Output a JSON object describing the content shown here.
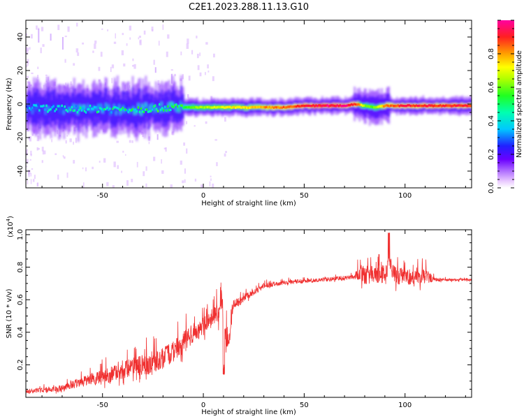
{
  "title": "C2E1.2023.288.11.13.G10",
  "chart_data": [
    {
      "type": "heatmap",
      "xlabel": "Height of straight line (km)",
      "ylabel": "Frequency (Hz)",
      "xlim": [
        -88,
        133
      ],
      "ylim": [
        -50,
        50
      ],
      "xticks": [
        -50,
        0,
        50,
        100
      ],
      "xtick_labels": [
        "-50",
        "0",
        "50",
        "100"
      ],
      "yticks": [
        -40,
        -20,
        0,
        20,
        40
      ],
      "ytick_labels": [
        "-40",
        "-20",
        "0",
        "20",
        "40"
      ],
      "colorbar": {
        "label": "Normalized spectral amplitude",
        "range": [
          0,
          1
        ],
        "ticks": [
          0.0,
          0.2,
          0.4,
          0.6,
          0.8
        ],
        "tick_labels": [
          "0.0",
          "0.2",
          "0.4",
          "0.6",
          "0.8"
        ]
      },
      "ridge": {
        "x": [
          -88,
          -70,
          -60,
          -50,
          -40,
          -30,
          -20,
          -10,
          0,
          20,
          40,
          50,
          60,
          70,
          75,
          80,
          85,
          90,
          100,
          110,
          120,
          133
        ],
        "frequency": [
          -2,
          -3,
          -3,
          -3,
          -3,
          -3,
          -2,
          -2,
          -2,
          -2,
          -2,
          -1,
          -1,
          -1,
          0,
          -1,
          -2,
          -1,
          -1,
          -1,
          -1,
          -1
        ],
        "amplitude": [
          0.35,
          0.4,
          0.45,
          0.45,
          0.45,
          0.5,
          0.5,
          0.55,
          0.65,
          0.75,
          0.85,
          0.9,
          0.95,
          0.95,
          0.9,
          0.6,
          0.6,
          0.85,
          0.9,
          0.9,
          0.9,
          0.9
        ]
      }
    },
    {
      "type": "line",
      "xlabel": "Height of straight line (km)",
      "ylabel": "SNR (10 * v/v)",
      "y_multiplier_label": "(x10",
      "y_multiplier_exp": "4",
      "y_multiplier_close": ")",
      "xlim": [
        -88,
        133
      ],
      "ylim": [
        0,
        10300
      ],
      "xticks": [
        -50,
        0,
        50,
        100
      ],
      "xtick_labels": [
        "-50",
        "0",
        "50",
        "100"
      ],
      "yticks": [
        2000,
        4000,
        6000,
        8000,
        10000
      ],
      "ytick_labels": [
        "0.2",
        "0.4",
        "0.6",
        "0.8",
        "1.0"
      ],
      "color": "#f03030",
      "series": [
        {
          "x": [
            -88,
            -80,
            -70,
            -60,
            -50,
            -45,
            -40,
            -35,
            -30,
            -25,
            -20,
            -15,
            -10,
            -5,
            0,
            5,
            10,
            12,
            15,
            20,
            25,
            30,
            40,
            50,
            60,
            70,
            75,
            78,
            80,
            85,
            90,
            92,
            95,
            100,
            105,
            110,
            115,
            120,
            125,
            133
          ],
          "values": [
            300,
            400,
            500,
            900,
            1100,
            1300,
            1500,
            1700,
            1800,
            1900,
            2200,
            2600,
            3100,
            3800,
            4200,
            4900,
            5100,
            3000,
            5600,
            6000,
            6400,
            6800,
            7000,
            7100,
            7200,
            7300,
            7400,
            7500,
            7300,
            7400,
            7400,
            8000,
            7300,
            7300,
            7200,
            7300,
            7200,
            7200,
            7200,
            7200
          ],
          "noise": [
            250,
            300,
            400,
            600,
            900,
            1000,
            1100,
            1200,
            1300,
            1300,
            1300,
            1300,
            1400,
            1200,
            1100,
            1000,
            1600,
            1200,
            600,
            400,
            400,
            300,
            250,
            250,
            250,
            300,
            350,
            1100,
            1200,
            1100,
            1200,
            1400,
            1100,
            1000,
            900,
            1000,
            200,
            150,
            150,
            150
          ]
        }
      ]
    }
  ]
}
